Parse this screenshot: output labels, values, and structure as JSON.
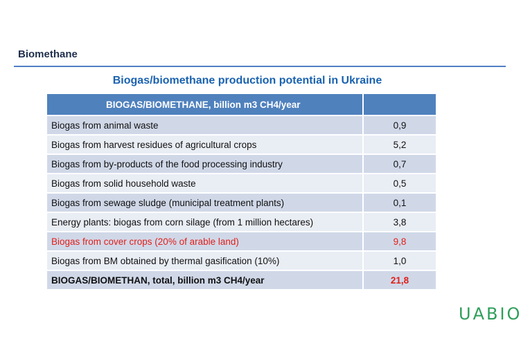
{
  "section_title": "Biomethane",
  "slide_title": "Biogas/biomethane production potential in Ukraine",
  "table": {
    "header": {
      "label": "BIOGAS/BIOMETHANE, billion m3 CH4/year",
      "value": ""
    },
    "rows": [
      {
        "label": "Biogas from animal waste",
        "value": "0,9"
      },
      {
        "label": "Biogas from harvest residues of agricultural crops",
        "value": "5,2"
      },
      {
        "label": "Biogas from by-products of the food processing industry",
        "value": "0,7"
      },
      {
        "label": "Biogas from solid household waste",
        "value": "0,5"
      },
      {
        "label": "Biogas from sewage sludge (municipal treatment plants)",
        "value": "0,1"
      },
      {
        "label": "Energy plants: biogas from corn silage (from 1 million hectares)",
        "value": "3,8"
      },
      {
        "label": "Biogas from cover crops (20% of arable land)",
        "value": "9,8"
      },
      {
        "label": "Biogas from BM obtained by thermal gasification (10%)",
        "value": "1,0"
      },
      {
        "label": "BIOGAS/BIOMETHAN, total, billion m3 CH4/year",
        "value": "21,8"
      }
    ]
  },
  "logo": "UABIO",
  "colors": {
    "header_bg": "#4f81bd",
    "title_blue": "#1a62b0",
    "highlight_red": "#e0201a",
    "logo_green": "#2e9e5a"
  }
}
